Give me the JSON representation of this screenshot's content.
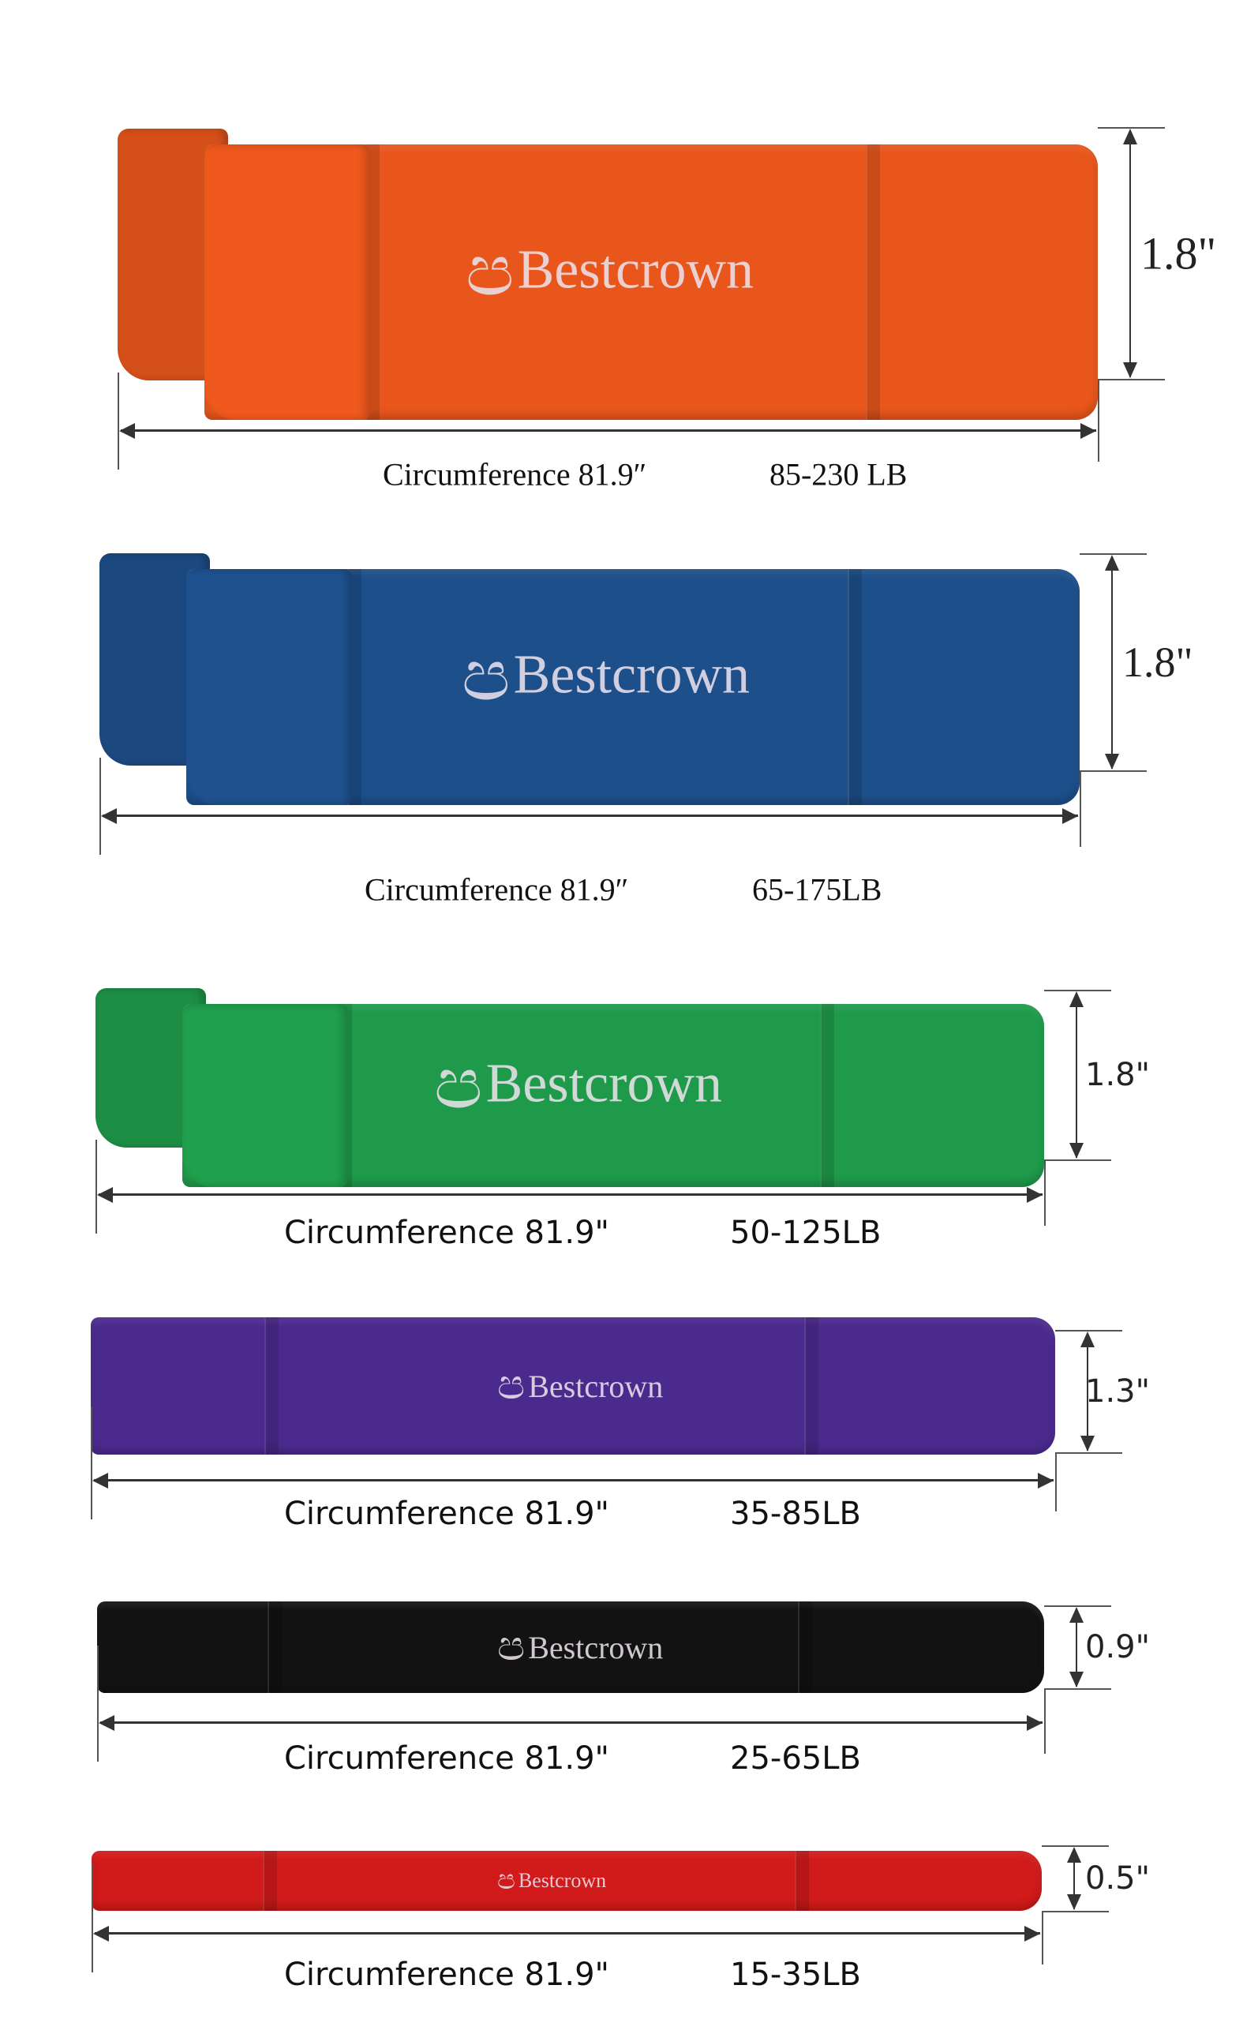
{
  "brand": "Bestcrown",
  "bands": [
    {
      "color": "#e8561c",
      "width": "1.8\"",
      "circumference": "Circumference 81.9″",
      "resistance": "85-230 LB"
    },
    {
      "color": "#1d4f8a",
      "width": "1.8\"",
      "circumference": "Circumference 81.9″",
      "resistance": "65-175LB"
    },
    {
      "color": "#1f9a4a",
      "width": "1.8\"",
      "circumference": "Circumference 81.9\"",
      "resistance": "50-125LB"
    },
    {
      "color": "#4b2a8e",
      "width": "1.3\"",
      "circumference": "Circumference 81.9\"",
      "resistance": "35-85LB"
    },
    {
      "color": "#121212",
      "width": "0.9\"",
      "circumference": "Circumference 81.9\"",
      "resistance": "25-65LB"
    },
    {
      "color": "#d11a1a",
      "width": "0.5\"",
      "circumference": "Circumference 81.9\"",
      "resistance": "15-35LB"
    }
  ]
}
